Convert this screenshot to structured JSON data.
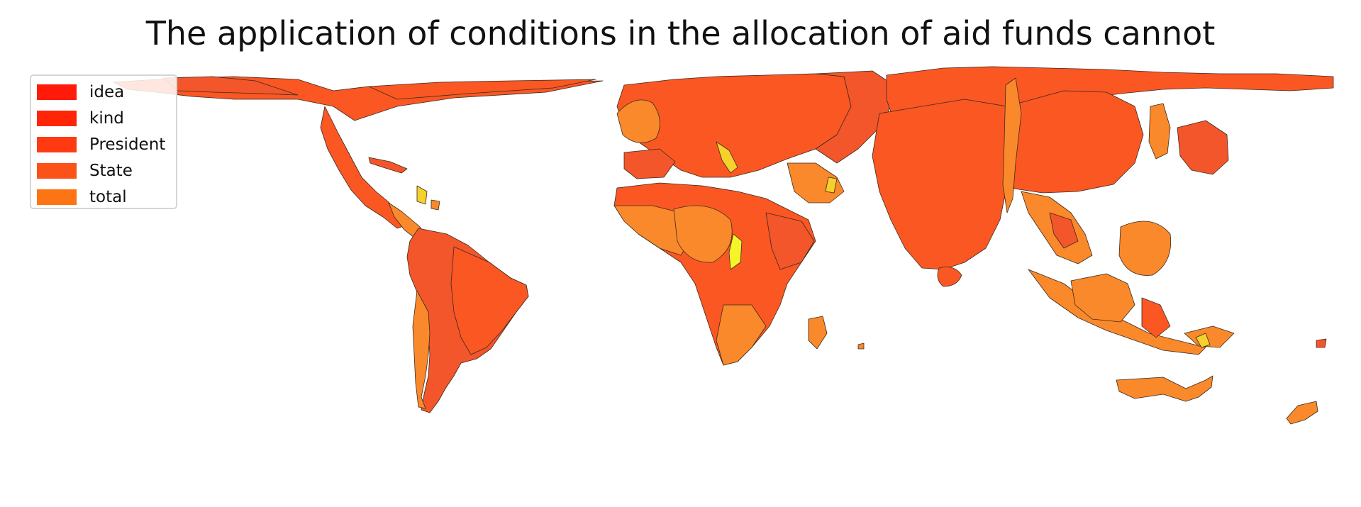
{
  "title": "The application of conditions in the allocation of aid funds cannot",
  "legend": [
    {
      "label": "idea",
      "color": "#ff1a0a"
    },
    {
      "label": "kind",
      "color": "#ff2608"
    },
    {
      "label": "President",
      "color": "#ff3a12"
    },
    {
      "label": "State",
      "color": "#fb5218"
    },
    {
      "label": "total",
      "color": "#fc7414"
    }
  ],
  "colors": {
    "land_main": "#fb5723",
    "land_orange": "#f9892a",
    "land_deep": "#f2562a",
    "land_yellow": "#f6d12b",
    "land_bright_yellow": "#f4f429",
    "outline": "#3a2a20"
  }
}
